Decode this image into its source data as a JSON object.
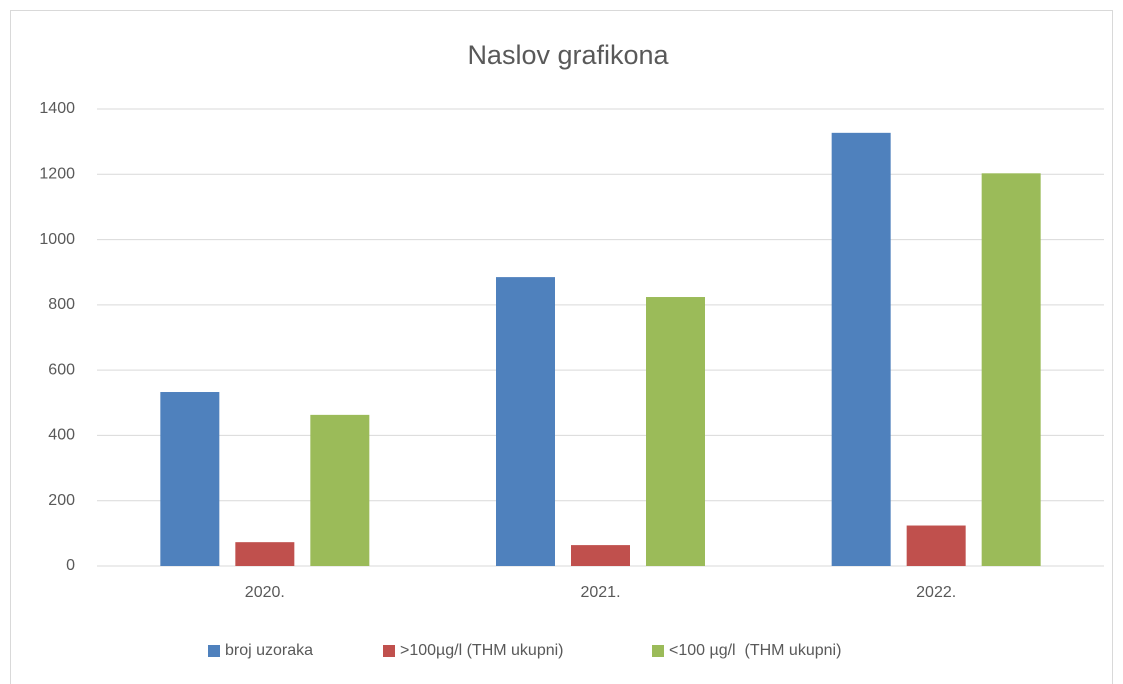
{
  "chart_data": {
    "type": "bar",
    "title": "Naslov grafikona",
    "categories": [
      "2020.",
      "2021.",
      "2022."
    ],
    "series": [
      {
        "name": "broj uzoraka",
        "color": "#4f81bd",
        "values": [
          533,
          885,
          1327
        ]
      },
      {
        "name": ">100µg/l (THM ukupni)",
        "color": "#c0504d",
        "values": [
          73,
          64,
          124
        ]
      },
      {
        "name": "<100 µg/l  (THM ukupni)",
        "color": "#9bbb59",
        "values": [
          463,
          824,
          1203
        ]
      }
    ],
    "ylim": [
      0,
      1400
    ],
    "yticks": [
      0,
      200,
      400,
      600,
      800,
      1000,
      1200,
      1400
    ],
    "grid": true,
    "legend": "bottom"
  }
}
